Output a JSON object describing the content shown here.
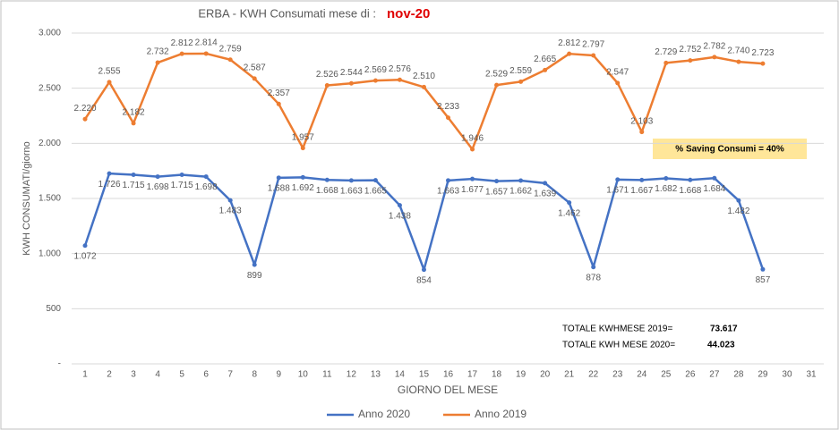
{
  "chart_data": {
    "type": "line",
    "title": "ERBA - KWH Consumati mese di :",
    "title_highlight": "nov-20",
    "x_label": "GIORNO DEL MESE",
    "y_label": "KWH CONSUMATI/giorno",
    "categories": [
      "1",
      "2",
      "3",
      "4",
      "5",
      "6",
      "7",
      "8",
      "9",
      "10",
      "11",
      "12",
      "13",
      "14",
      "15",
      "16",
      "17",
      "18",
      "19",
      "20",
      "21",
      "22",
      "23",
      "24",
      "25",
      "26",
      "27",
      "28",
      "29",
      "30",
      "31"
    ],
    "ylim": [
      0,
      3000
    ],
    "yticks": [
      {
        "value": 0,
        "label": "-"
      },
      500,
      {
        "value": 1000,
        "label": "1.000"
      },
      {
        "value": 1500,
        "label": "1.500"
      },
      {
        "value": 2000,
        "label": "2.000"
      },
      {
        "value": 2500,
        "label": "2.500"
      },
      {
        "value": 3000,
        "label": "3.000"
      }
    ],
    "grid": true,
    "legend": "bottom",
    "series": [
      {
        "name": "Anno 2020",
        "color": "#4472c4",
        "values": [
          1072,
          1726,
          1715,
          1698,
          1715,
          1698,
          1483,
          899,
          1688,
          1692,
          1668,
          1663,
          1665,
          1438,
          854,
          1663,
          1677,
          1657,
          1662,
          1639,
          1462,
          878,
          1671,
          1667,
          1682,
          1668,
          1684,
          1482,
          857,
          null,
          null
        ],
        "value_labels": [
          "1.072",
          "1.726",
          "1.715",
          "1.698",
          "1.715",
          "1.698",
          "1.483",
          "899",
          "1.688",
          "1.692",
          "1.668",
          "1.663",
          "1.665",
          "1.438",
          "854",
          "1.663",
          "1.677",
          "1.657",
          "1.662",
          "1.639",
          "1.462",
          "878",
          "1.671",
          "1.667",
          "1.682",
          "1.668",
          "1.684",
          "1.482",
          "857",
          null,
          null
        ]
      },
      {
        "name": "Anno 2019",
        "color": "#ed7d31",
        "values": [
          2220,
          2555,
          2182,
          2732,
          2812,
          2814,
          2759,
          2587,
          2357,
          1957,
          2526,
          2544,
          2569,
          2576,
          2510,
          2233,
          1946,
          2529,
          2559,
          2665,
          2812,
          2797,
          2547,
          2103,
          2729,
          2752,
          2782,
          2740,
          2723,
          null,
          null
        ],
        "value_labels": [
          "2.220",
          "2.555",
          "2.182",
          "2.732",
          "2.812",
          "2.814",
          "2.759",
          "2.587",
          "2.357",
          "1.957",
          "2.526",
          "2.544",
          "2.569",
          "2.576",
          "2.510",
          "2.233",
          "1.946",
          "2.529",
          "2.559",
          "2.665",
          "2.812",
          "2.797",
          "2.547",
          "2.103",
          "2.729",
          "2.752",
          "2.782",
          "2.740",
          "2.723",
          null,
          null
        ]
      }
    ],
    "annotation": "% Saving Consumi = 40%",
    "totals": [
      {
        "label": "TOTALE KWHMESE 2019=",
        "value": "73.617"
      },
      {
        "label": "TOTALE KWH MESE 2020=",
        "value": "44.023"
      }
    ]
  }
}
